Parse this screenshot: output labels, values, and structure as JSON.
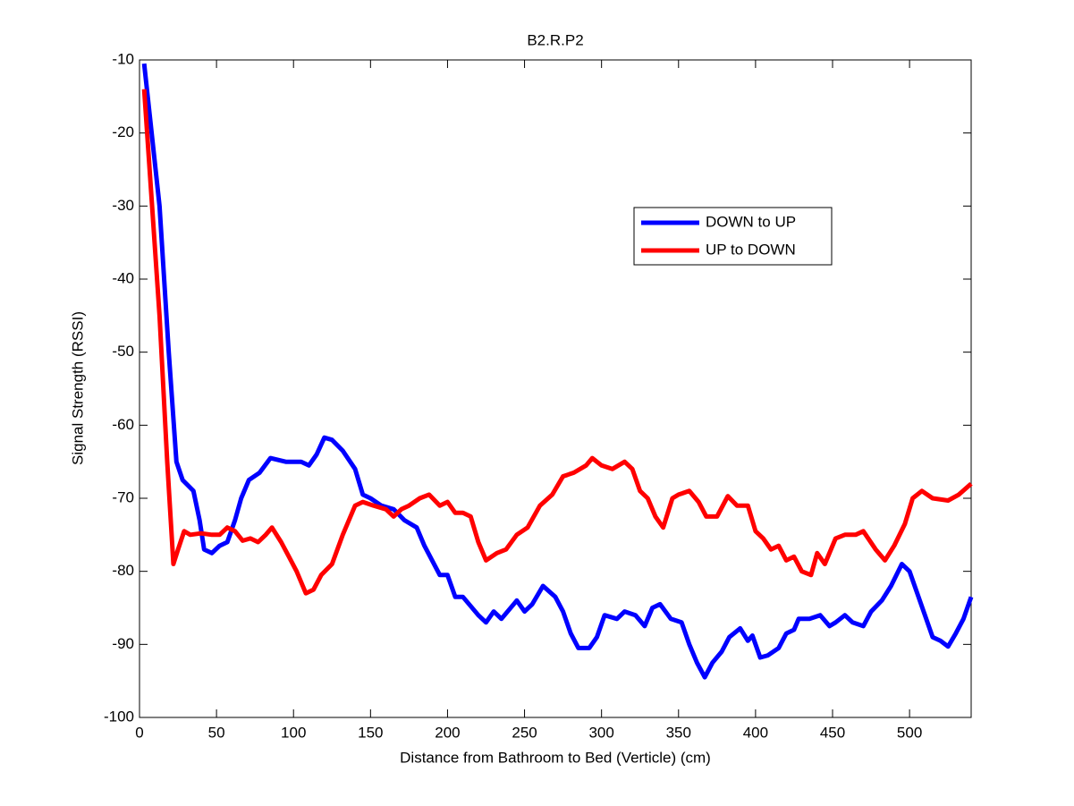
{
  "chart_data": {
    "type": "line",
    "title": "B2.R.P2",
    "x_label": "Distance from Bathroom to Bed (Verticle)  (cm)",
    "y_label": "Signal Strength (RSSI)",
    "xlim": [
      0,
      540
    ],
    "xticks": [
      0,
      50,
      100,
      150,
      200,
      250,
      300,
      350,
      400,
      450,
      500
    ],
    "ylim": [
      -100,
      -10
    ],
    "yticks": [
      -100,
      -90,
      -80,
      -70,
      -60,
      -50,
      -40,
      -30,
      -20,
      -10
    ],
    "legend_position": "upper right",
    "series": [
      {
        "name": "DOWN to UP",
        "color": "#0000ff",
        "x": [
          3,
          13,
          19,
          24,
          28,
          35,
          39,
          42,
          47,
          52,
          57,
          62,
          66,
          71,
          78,
          85,
          95,
          105,
          110,
          115,
          120,
          125,
          132,
          140,
          145,
          150,
          157,
          165,
          172,
          180,
          185,
          195,
          200,
          205,
          210,
          220,
          225,
          230,
          235,
          245,
          250,
          255,
          262,
          270,
          275,
          280,
          285,
          292,
          297,
          302,
          310,
          315,
          322,
          328,
          333,
          338,
          345,
          352,
          357,
          362,
          367,
          372,
          378,
          383,
          390,
          395,
          398,
          403,
          408,
          415,
          420,
          425,
          428,
          435,
          442,
          448,
          452,
          458,
          463,
          470,
          475,
          482,
          488,
          495,
          500,
          505,
          515,
          520,
          525,
          530,
          535,
          540
        ],
        "values": [
          -10.5,
          -30,
          -50,
          -65,
          -67.5,
          -69,
          -73,
          -77,
          -77.5,
          -76.5,
          -76,
          -73,
          -70,
          -67.5,
          -66.5,
          -64.5,
          -65,
          -65,
          -65.5,
          -64,
          -61.7,
          -62,
          -63.5,
          -66,
          -69.5,
          -70,
          -71,
          -71.5,
          -73,
          -74,
          -76.5,
          -80.5,
          -80.5,
          -83.5,
          -83.5,
          -86,
          -87,
          -85.5,
          -86.5,
          -84,
          -85.5,
          -84.5,
          -82,
          -83.5,
          -85.5,
          -88.5,
          -90.5,
          -90.5,
          -89,
          -86,
          -86.5,
          -85.5,
          -86,
          -87.5,
          -85,
          -84.5,
          -86.5,
          -87,
          -90,
          -92.5,
          -94.5,
          -92.5,
          -91,
          -89,
          -87.8,
          -89.5,
          -88.8,
          -91.8,
          -91.5,
          -90.5,
          -88.5,
          -88,
          -86.5,
          -86.5,
          -86,
          -87.5,
          -87,
          -86,
          -87,
          -87.5,
          -85.5,
          -84,
          -82,
          -79,
          -80,
          -83,
          -89,
          -89.5,
          -90.3,
          -88.5,
          -86.5,
          -83.5
        ]
      },
      {
        "name": "UP to DOWN",
        "color": "#ff0000",
        "x": [
          3,
          13,
          18,
          22,
          25,
          29,
          33,
          40,
          47,
          52,
          57,
          62,
          67,
          72,
          77,
          82,
          86,
          92,
          97,
          102,
          108,
          113,
          118,
          125,
          132,
          140,
          145,
          152,
          160,
          165,
          170,
          175,
          182,
          188,
          195,
          200,
          205,
          210,
          215,
          220,
          225,
          232,
          238,
          245,
          252,
          260,
          268,
          275,
          282,
          290,
          294,
          300,
          307,
          315,
          320,
          325,
          330,
          335,
          340,
          346,
          350,
          357,
          363,
          368,
          375,
          382,
          388,
          395,
          400,
          405,
          410,
          415,
          420,
          425,
          430,
          436,
          440,
          445,
          452,
          458,
          465,
          470,
          478,
          484,
          490,
          497,
          502,
          508,
          515,
          525,
          532,
          540
        ],
        "values": [
          -14,
          -45,
          -65,
          -79,
          -77,
          -74.5,
          -75,
          -74.8,
          -75,
          -75,
          -74,
          -74.5,
          -75.8,
          -75.5,
          -76,
          -75,
          -74,
          -76,
          -78,
          -80,
          -83,
          -82.5,
          -80.5,
          -79,
          -75,
          -71,
          -70.5,
          -71,
          -71.5,
          -72.5,
          -71.5,
          -71,
          -70,
          -69.5,
          -71,
          -70.5,
          -72,
          -72,
          -72.5,
          -76,
          -78.5,
          -77.5,
          -77,
          -75,
          -74,
          -71,
          -69.5,
          -67,
          -66.5,
          -65.5,
          -64.5,
          -65.5,
          -66,
          -65,
          -66,
          -69,
          -70,
          -72.5,
          -74,
          -70,
          -69.5,
          -69,
          -70.5,
          -72.5,
          -72.5,
          -69.7,
          -71,
          -71,
          -74.5,
          -75.5,
          -77,
          -76.5,
          -78.5,
          -78,
          -80,
          -80.5,
          -77.5,
          -79,
          -75.5,
          -75,
          -75,
          -74.5,
          -77,
          -78.5,
          -76.5,
          -73.5,
          -70,
          -69,
          -70,
          -70.3,
          -69.5,
          -68
        ]
      }
    ]
  }
}
